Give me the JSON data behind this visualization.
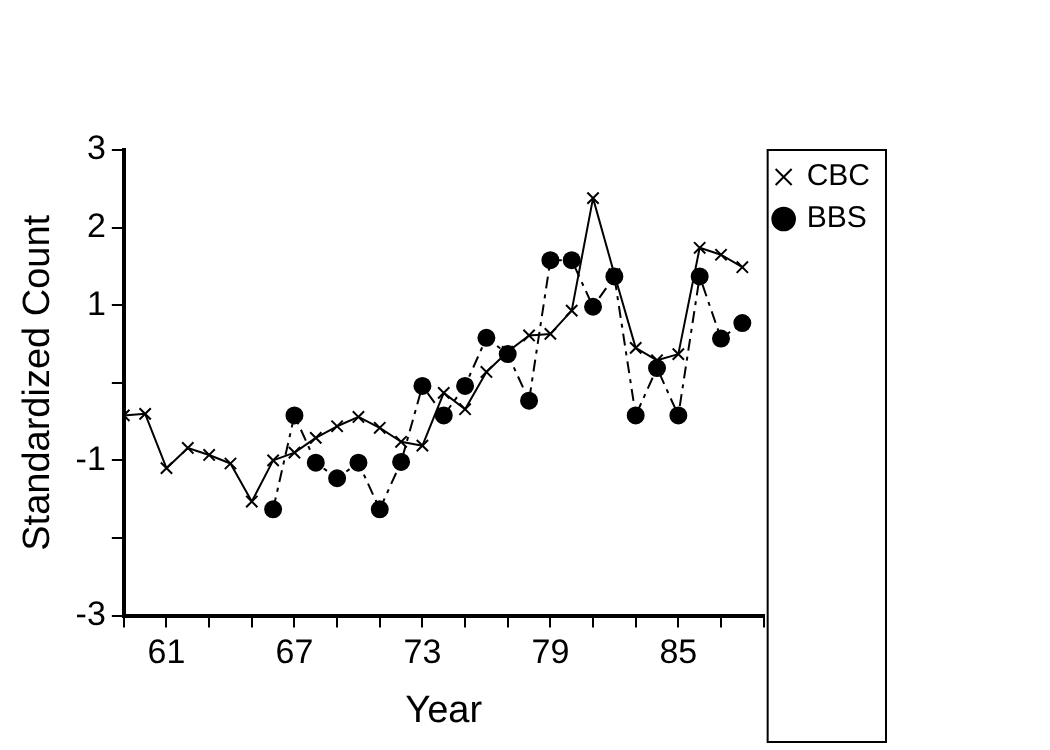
{
  "chart_data": {
    "type": "line",
    "xlabel": "Year",
    "ylabel": "Standardized Count",
    "x": [
      59,
      60,
      61,
      62,
      63,
      64,
      65,
      66,
      67,
      68,
      69,
      70,
      71,
      72,
      73,
      74,
      75,
      76,
      77,
      78,
      79,
      80,
      81,
      82,
      83,
      84,
      85,
      86,
      87,
      88
    ],
    "series": [
      {
        "name": "CBC",
        "color": "#000000",
        "marker": "cross",
        "line_style": "solid",
        "values": [
          -0.42,
          -0.4,
          -1.1,
          -0.84,
          -0.93,
          -1.04,
          -1.53,
          -1.0,
          -0.9,
          -0.71,
          -0.56,
          -0.44,
          -0.58,
          -0.76,
          -0.81,
          -0.13,
          -0.34,
          0.14,
          0.4,
          0.61,
          0.63,
          0.93,
          2.38,
          1.4,
          0.45,
          0.29,
          0.37,
          1.74,
          1.65,
          1.49
        ]
      },
      {
        "name": "BBS",
        "color": "#000000",
        "marker": "circle",
        "line_style": "dashdot",
        "values": [
          null,
          null,
          null,
          null,
          null,
          null,
          null,
          -1.63,
          -0.42,
          -1.03,
          -1.23,
          -1.03,
          -1.63,
          -1.02,
          -0.04,
          -0.42,
          -0.04,
          0.58,
          0.37,
          -0.23,
          1.58,
          1.58,
          0.98,
          1.37,
          -0.42,
          0.19,
          -0.42,
          1.37,
          0.57,
          0.77
        ]
      }
    ],
    "xlim": [
      59,
      89
    ],
    "xticks": [
      {
        "value": 59,
        "label": null
      },
      61,
      {
        "value": 63,
        "label": null
      },
      {
        "value": 65,
        "label": null
      },
      67,
      {
        "value": 69,
        "label": null
      },
      {
        "value": 71,
        "label": null
      },
      73,
      {
        "value": 75,
        "label": null
      },
      {
        "value": 77,
        "label": null
      },
      79,
      {
        "value": 81,
        "label": null
      },
      {
        "value": 83,
        "label": null
      },
      85,
      {
        "value": 87,
        "label": null
      },
      {
        "value": 89,
        "label": null
      }
    ],
    "ylim": [
      -3,
      3
    ],
    "yticks": [
      -3,
      {
        "value": -2,
        "label": null
      },
      -1,
      {
        "value": 0,
        "label": null
      },
      1,
      2,
      3
    ],
    "grid": false,
    "legend": "top right"
  }
}
